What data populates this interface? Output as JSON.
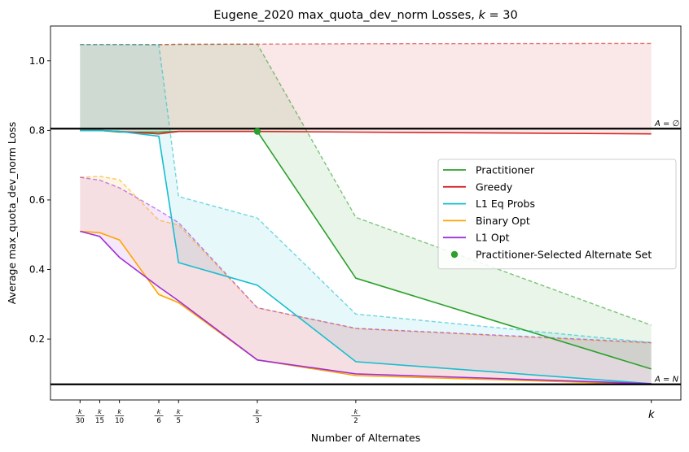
{
  "chart_data": {
    "type": "line",
    "title": "Eugene_2020 max_quota_dev_norm Losses, k = 30",
    "title_parts": {
      "prefix": "Eugene_2020 max_quota_dev_norm Losses, ",
      "k": "k",
      "suffix": " = 30"
    },
    "xlabel": "Number of Alternates",
    "ylabel": "Average max_quota_dev_norm Loss",
    "xlim": [
      -0.5,
      31.5
    ],
    "ylim": [
      0.025,
      1.1
    ],
    "grid": false,
    "legend_position": "center-right",
    "x": [
      1,
      2,
      3,
      5,
      6,
      10,
      15,
      30
    ],
    "x_tick_labels": [
      {
        "x": 1,
        "num": "k",
        "den": "30"
      },
      {
        "x": 2,
        "num": "k",
        "den": "15"
      },
      {
        "x": 3,
        "num": "k",
        "den": "10"
      },
      {
        "x": 5,
        "num": "k",
        "den": "6"
      },
      {
        "x": 6,
        "num": "k",
        "den": "5"
      },
      {
        "x": 10,
        "num": "k",
        "den": "3"
      },
      {
        "x": 15,
        "num": "k",
        "den": "2"
      },
      {
        "x": 30,
        "num": "k",
        "den": ""
      }
    ],
    "y_ticks": [
      0.2,
      0.4,
      0.6,
      0.8,
      1.0
    ],
    "y_tick_labels": [
      "0.2",
      "0.4",
      "0.6",
      "0.8",
      "1.0"
    ],
    "series": [
      {
        "name": "Practitioner",
        "color": "#2ca02c",
        "values": [
          0.8,
          0.8,
          0.795,
          0.795,
          0.797,
          0.797,
          0.375,
          0.114
        ],
        "upper": [
          1.047,
          1.047,
          1.047,
          1.047,
          1.047,
          1.048,
          0.55,
          0.24
        ]
      },
      {
        "name": "Greedy",
        "color": "#d62728",
        "values": [
          0.8,
          0.8,
          0.797,
          0.79,
          0.797,
          0.797,
          0.795,
          0.79
        ],
        "upper": [
          1.047,
          1.047,
          1.047,
          1.046,
          1.048,
          1.048,
          1.049,
          1.05
        ]
      },
      {
        "name": "L1 Eq Probs",
        "color": "#17becf",
        "values": [
          0.8,
          0.8,
          0.797,
          0.783,
          0.42,
          0.355,
          0.135,
          0.072
        ],
        "upper": [
          1.047,
          1.047,
          1.047,
          1.047,
          0.61,
          0.548,
          0.272,
          0.19
        ]
      },
      {
        "name": "Binary Opt",
        "color": "#ffa500",
        "values": [
          0.51,
          0.506,
          0.485,
          0.328,
          0.305,
          0.14,
          0.095,
          0.07
        ],
        "upper": [
          0.665,
          0.668,
          0.658,
          0.542,
          0.528,
          0.29,
          0.23,
          0.188
        ]
      },
      {
        "name": "L1 Opt",
        "color": "#a030d8",
        "values": [
          0.51,
          0.495,
          0.435,
          0.35,
          0.31,
          0.14,
          0.1,
          0.072
        ],
        "upper": [
          0.665,
          0.657,
          0.635,
          0.57,
          0.535,
          0.29,
          0.231,
          0.19
        ]
      }
    ],
    "scatter": {
      "name": "Practitioner-Selected Alternate Set",
      "color": "#2ca02c",
      "x": 10,
      "y": 0.797
    },
    "reference_lines": [
      {
        "y": 0.805,
        "label": "A = ∅"
      },
      {
        "y": 0.07,
        "label": "A = N"
      }
    ]
  }
}
